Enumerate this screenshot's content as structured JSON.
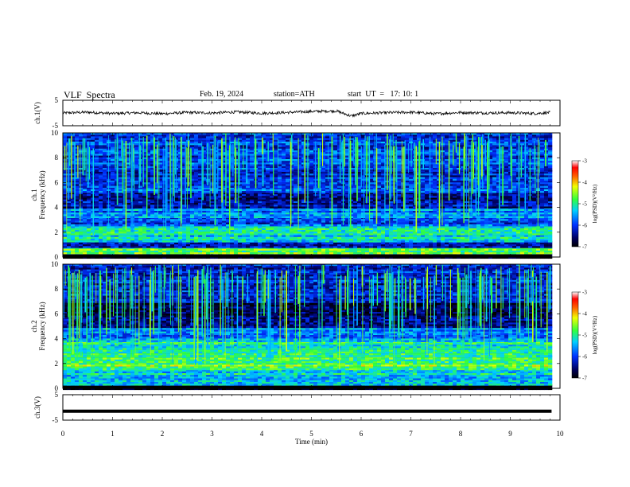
{
  "header": {
    "title": "VLF  Spectra",
    "date": "Feb. 19, 2024",
    "station": "station=ATH",
    "start": "start  UT  =   17: 10: 1"
  },
  "colors": {
    "background": "#ffffff",
    "axis": "#000000"
  },
  "chart_data": [
    {
      "type": "line",
      "ylabel": "ch.1(V)",
      "ylim": [
        -5,
        5
      ],
      "y_ticks": [
        "5",
        "-5"
      ],
      "xlim": [
        0,
        10
      ],
      "x": [
        0,
        0.5,
        1,
        1.5,
        2,
        2.5,
        3,
        3.5,
        4,
        4.5,
        5,
        5.5,
        5.8,
        6,
        6.5,
        7,
        7.5,
        8,
        8.5,
        9,
        9.5,
        9.8
      ],
      "values": [
        0,
        0.3,
        -0.2,
        0.1,
        -0.3,
        0.2,
        0,
        0.4,
        -0.1,
        0.2,
        0.6,
        0.8,
        -1.2,
        -0.2,
        0.1,
        0.3,
        -0.3,
        0.2,
        0,
        0.1,
        -0.2,
        0.2
      ]
    },
    {
      "type": "heatmap",
      "ylabel": "ch.1\nFrequency (kHz)",
      "ylim": [
        0,
        10
      ],
      "y_ticks": [
        "0",
        "2",
        "4",
        "6",
        "8",
        "10"
      ],
      "xlim": [
        0,
        10
      ],
      "x_data_end": 9.83,
      "colorbar": {
        "label": "log(PSD)(V²/Hz)",
        "range": [
          -7,
          -3
        ],
        "ticks": [
          "-3",
          "-4",
          "-5",
          "-6",
          "-7"
        ]
      },
      "bands_khz": [
        {
          "from": 0,
          "to": 0.3,
          "log_psd": -6.8
        },
        {
          "from": 0.3,
          "to": 0.8,
          "log_psd": -4.8
        },
        {
          "from": 0.8,
          "to": 1.3,
          "log_psd": -6.2
        },
        {
          "from": 1.3,
          "to": 2.6,
          "log_psd": -5.2
        },
        {
          "from": 2.6,
          "to": 3.2,
          "log_psd": -5.9
        },
        {
          "from": 3.2,
          "to": 4.0,
          "log_psd": -5.7
        },
        {
          "from": 4.0,
          "to": 5.2,
          "log_psd": -6.4
        },
        {
          "from": 5.2,
          "to": 5.6,
          "log_psd": -5.8
        },
        {
          "from": 5.6,
          "to": 7.0,
          "log_psd": -6.1
        },
        {
          "from": 7.0,
          "to": 10.0,
          "log_psd": -6.0
        }
      ]
    },
    {
      "type": "heatmap",
      "ylabel": "ch.2\nFrequency (kHz)",
      "ylim": [
        0,
        10
      ],
      "y_ticks": [
        "0",
        "2",
        "4",
        "6",
        "8",
        "10"
      ],
      "xlim": [
        0,
        10
      ],
      "x_data_end": 9.83,
      "colorbar": {
        "label": "log(PSD)(V²/Hz)",
        "range": [
          -7,
          -3
        ],
        "ticks": [
          "-3",
          "-4",
          "-5",
          "-6",
          "-7"
        ]
      },
      "bands_khz": [
        {
          "from": 0,
          "to": 0.3,
          "log_psd": -6.8
        },
        {
          "from": 0.3,
          "to": 1.5,
          "log_psd": -5.3
        },
        {
          "from": 1.5,
          "to": 2.6,
          "log_psd": -4.7
        },
        {
          "from": 2.6,
          "to": 3.8,
          "log_psd": -5.1
        },
        {
          "from": 3.8,
          "to": 5.0,
          "log_psd": -5.6
        },
        {
          "from": 5.0,
          "to": 6.0,
          "log_psd": -6.3
        },
        {
          "from": 6.0,
          "to": 7.0,
          "log_psd": -6.7
        },
        {
          "from": 7.0,
          "to": 10.0,
          "log_psd": -6.2
        }
      ]
    },
    {
      "type": "line",
      "ylabel": "ch.3(V)",
      "ylim": [
        -5,
        5
      ],
      "y_ticks": [
        "5",
        "-5"
      ],
      "xlim": [
        0,
        10
      ],
      "x": [
        0,
        9.83
      ],
      "values": [
        -1.5,
        -1.5
      ]
    }
  ],
  "xaxis": {
    "label": "Time  (min)",
    "ticks": [
      "0",
      "1",
      "2",
      "3",
      "4",
      "5",
      "6",
      "7",
      "8",
      "9",
      "10"
    ]
  }
}
